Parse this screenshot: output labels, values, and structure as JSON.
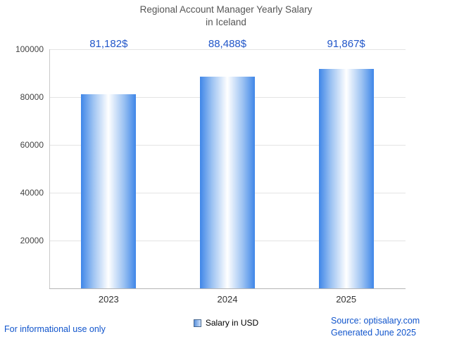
{
  "title": {
    "line1": "Regional Account Manager Yearly Salary",
    "line2": "in Iceland"
  },
  "chart_data": {
    "type": "bar",
    "title": "Regional Account Manager Yearly Salary in Iceland",
    "categories": [
      "2023",
      "2024",
      "2025"
    ],
    "values": [
      81182,
      88488,
      91867
    ],
    "value_labels": [
      "81,182$",
      "88,488$",
      "91,867$"
    ],
    "xlabel": "",
    "ylabel": "",
    "ylim": [
      0,
      100000
    ],
    "yticks": [
      20000,
      40000,
      60000,
      80000,
      100000
    ],
    "grid": true,
    "legend_position": "bottom",
    "colors": {
      "bar_edge": "#3f86e8",
      "bar_center": "#ffffff",
      "value_label": "#2156c9",
      "title": "#555555",
      "footer_link": "#1155cc",
      "gridline": "#e4e4e4"
    }
  },
  "legend": {
    "label": "Salary in USD"
  },
  "footer": {
    "left": "For informational use only",
    "source": "Source: optisalary.com",
    "generated": "Generated June 2025"
  }
}
